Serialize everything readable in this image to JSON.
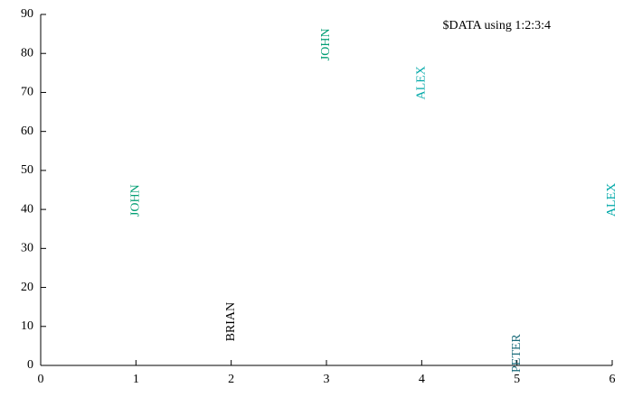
{
  "chart_data": {
    "type": "scatter",
    "series": [
      {
        "name": "$DATA using 1:2:3:4",
        "x": [
          1,
          2,
          3,
          4,
          5,
          6
        ],
        "values": [
          40,
          8,
          80,
          70,
          0,
          40
        ],
        "labels": [
          "JOHN",
          "BRIAN",
          "JOHN",
          "ALEX",
          "PETER",
          "ALEX"
        ],
        "colors": [
          "#009e73",
          "#000000",
          "#009e73",
          "#00a8a8",
          "#1a6b7a",
          "#00a8a8"
        ]
      }
    ],
    "xlim": [
      0,
      6
    ],
    "xticks": [
      0,
      1,
      2,
      3,
      4,
      5,
      6
    ],
    "ylim": [
      0,
      90
    ],
    "yticks": [
      0,
      10,
      20,
      30,
      40,
      50,
      60,
      70,
      80,
      90
    ],
    "legend": "top-right",
    "grid": false
  }
}
